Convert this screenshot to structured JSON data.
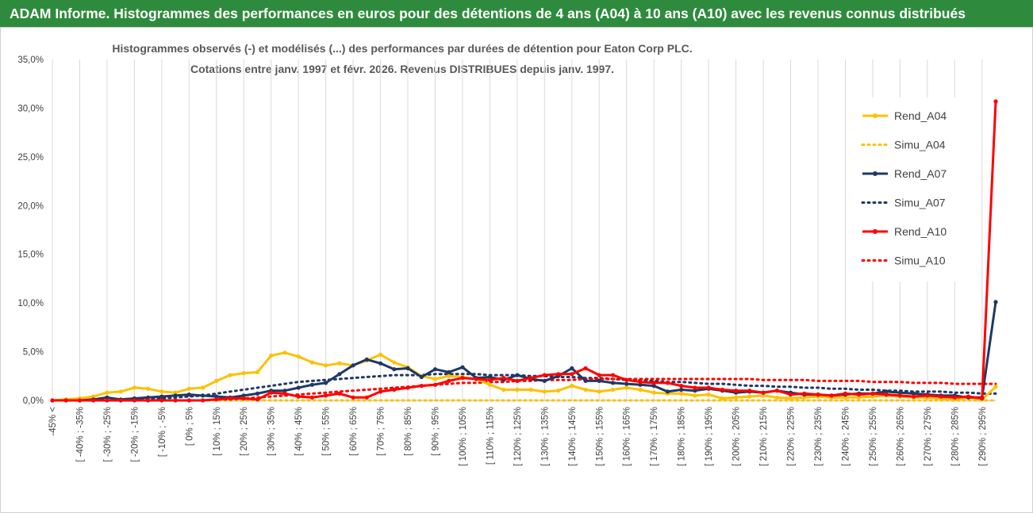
{
  "header": {
    "title": "ADAM Informe. Histogrammes des performances en euros pour des détentions de 4 ans (A04) à 10 ans (A10) avec les revenus connus distribués"
  },
  "chart_data": {
    "type": "line",
    "title_line1": "Histogrammes observés (-) et modélisés (...) des performances par durées de détention pour Eaton Corp PLC.",
    "title_line2": "Cotations entre janv. 1997 et févr. 2026. Revenus DISTRIBUES depuis janv. 1997.",
    "y_ticks": [
      "0,0%",
      "5,0%",
      "10,0%",
      "15,0%",
      "20,0%",
      "25,0%",
      "30,0%",
      "35,0%"
    ],
    "ylim": [
      0,
      35
    ],
    "x_ticks": [
      "-45% <",
      "[ -40% ; -35%",
      "[ -30% ; -25%",
      "[ -20% ; -15%",
      "[ -10% ; -5%",
      "[ 0% ; 5%",
      "[ 10% ; 15%",
      "[ 20% ; 25%",
      "[ 30% ; 35%",
      "[ 40% ; 45%",
      "[ 50% ; 55%",
      "[ 60% ; 65%",
      "[ 70% ; 75%",
      "[ 80% ; 85%",
      "[ 90% ; 95%",
      "[ 100% ; 105%",
      "[ 110% ; 115%",
      "[ 120% ; 125%",
      "[ 130% ; 135%",
      "[ 140% ; 145%",
      "[ 150% ; 155%",
      "[ 160% ; 165%",
      "[ 170% ; 175%",
      "[ 180% ; 185%",
      "[ 190% ; 195%",
      "[ 200% ; 205%",
      "[ 210% ; 215%",
      "[ 220% ; 225%",
      "[ 230% ; 235%",
      "[ 240% ; 245%",
      "[ 250% ; 255%",
      "[ 260% ; 265%",
      "[ 270% ; 275%",
      "[ 280% ; 285%",
      "[ 290% ; 295%"
    ],
    "n_points": 70,
    "series": [
      {
        "name": "Rend_A04",
        "color": "#ffc000",
        "dashed": false,
        "values": [
          0,
          0.1,
          0.2,
          0.4,
          0.8,
          0.9,
          1.3,
          1.2,
          0.9,
          0.8,
          1.2,
          1.3,
          2.0,
          2.6,
          2.8,
          2.9,
          4.6,
          4.9,
          4.5,
          3.9,
          3.6,
          3.8,
          3.6,
          4.1,
          4.7,
          3.9,
          3.4,
          2.5,
          2.2,
          2.5,
          2.4,
          2.2,
          1.6,
          1.1,
          1.1,
          1.1,
          0.9,
          1.0,
          1.5,
          1.1,
          0.9,
          1.1,
          1.3,
          1.1,
          0.8,
          0.7,
          0.7,
          0.5,
          0.6,
          0.2,
          0.3,
          0.4,
          0.5,
          0.3,
          0.2,
          0.3,
          0.4,
          0.3,
          0.3,
          0.3,
          0.4,
          0.5,
          0.4,
          0.3,
          0.3,
          0.2,
          0.1,
          0.3,
          0.1,
          1.4
        ]
      },
      {
        "name": "Simu_A04",
        "color": "#ffc000",
        "dashed": true,
        "values": [
          0,
          0,
          0,
          0,
          0,
          0,
          0,
          0,
          0,
          0,
          0,
          0,
          0,
          0,
          0,
          0,
          0,
          0,
          0,
          0,
          0,
          0,
          0,
          0,
          0,
          0,
          0,
          0,
          0,
          0,
          0,
          0,
          0,
          0,
          0,
          0,
          0,
          0,
          0,
          0,
          0,
          0,
          0,
          0,
          0,
          0,
          0,
          0,
          0,
          0,
          0,
          0,
          0,
          0,
          0,
          0,
          0,
          0,
          0,
          0,
          0,
          0,
          0,
          0,
          0,
          0,
          0,
          0,
          0,
          0
        ]
      },
      {
        "name": "Rend_A07",
        "color": "#1f3864",
        "dashed": false,
        "values": [
          0,
          0,
          0,
          0.1,
          0.3,
          0.1,
          0.2,
          0.3,
          0.4,
          0.5,
          0.6,
          0.5,
          0.4,
          0.3,
          0.5,
          0.7,
          1.0,
          1.0,
          1.3,
          1.6,
          1.8,
          2.7,
          3.6,
          4.2,
          3.8,
          3.2,
          3.3,
          2.4,
          3.2,
          2.9,
          3.4,
          2.3,
          2.4,
          2.1,
          2.6,
          2.2,
          2.0,
          2.5,
          3.3,
          2.0,
          2.0,
          1.8,
          1.7,
          1.6,
          1.5,
          0.9,
          1.1,
          1.0,
          1.2,
          1.0,
          0.8,
          0.9,
          0.8,
          1.0,
          0.8,
          0.6,
          0.6,
          0.5,
          0.6,
          0.7,
          0.7,
          0.9,
          0.8,
          0.7,
          0.6,
          0.5,
          0.5,
          0.3,
          0.3,
          10.1
        ]
      },
      {
        "name": "Simu_A07",
        "color": "#1f3864",
        "dashed": true,
        "values": [
          0,
          0,
          0,
          0,
          0,
          0,
          0.1,
          0.1,
          0.2,
          0.3,
          0.4,
          0.5,
          0.7,
          0.9,
          1.1,
          1.3,
          1.5,
          1.7,
          1.9,
          2.0,
          2.1,
          2.2,
          2.3,
          2.4,
          2.5,
          2.6,
          2.6,
          2.6,
          2.7,
          2.7,
          2.7,
          2.7,
          2.6,
          2.6,
          2.6,
          2.5,
          2.5,
          2.4,
          2.4,
          2.3,
          2.3,
          2.2,
          2.1,
          2.1,
          2.0,
          1.9,
          1.9,
          1.8,
          1.7,
          1.7,
          1.6,
          1.5,
          1.5,
          1.4,
          1.4,
          1.3,
          1.3,
          1.2,
          1.2,
          1.1,
          1.1,
          1.0,
          1.0,
          0.9,
          0.9,
          0.9,
          0.8,
          0.8,
          0.7,
          0.7
        ]
      },
      {
        "name": "Rend_A10",
        "color": "#ff0000",
        "dashed": false,
        "values": [
          0,
          0,
          0,
          0,
          0,
          0,
          0,
          0,
          0,
          0,
          0,
          0,
          0.1,
          0.2,
          0.2,
          0.1,
          0.8,
          0.7,
          0.4,
          0.3,
          0.5,
          0.7,
          0.3,
          0.3,
          0.9,
          1.1,
          1.3,
          1.5,
          1.6,
          2.0,
          2.3,
          2.2,
          2.1,
          2.3,
          2.0,
          2.3,
          2.6,
          2.7,
          2.7,
          3.3,
          2.6,
          2.6,
          2.1,
          1.9,
          1.8,
          1.8,
          1.5,
          1.3,
          1.3,
          1.1,
          1.0,
          1.0,
          0.8,
          1.0,
          0.6,
          0.7,
          0.6,
          0.5,
          0.7,
          0.6,
          0.7,
          0.6,
          0.5,
          0.4,
          0.5,
          0.4,
          0.3,
          0.4,
          0.2,
          30.7
        ]
      },
      {
        "name": "Simu_A10",
        "color": "#ff0000",
        "dashed": true,
        "values": [
          0,
          0,
          0,
          0,
          0,
          0,
          0,
          0,
          0,
          0,
          0,
          0,
          0.1,
          0.1,
          0.2,
          0.3,
          0.4,
          0.5,
          0.6,
          0.7,
          0.8,
          0.9,
          1.0,
          1.1,
          1.2,
          1.3,
          1.4,
          1.5,
          1.6,
          1.7,
          1.8,
          1.8,
          1.9,
          1.9,
          2.0,
          2.0,
          2.1,
          2.1,
          2.1,
          2.2,
          2.2,
          2.2,
          2.2,
          2.2,
          2.2,
          2.2,
          2.2,
          2.2,
          2.2,
          2.2,
          2.2,
          2.2,
          2.1,
          2.1,
          2.1,
          2.1,
          2.0,
          2.0,
          2.0,
          2.0,
          1.9,
          1.9,
          1.9,
          1.8,
          1.8,
          1.8,
          1.7,
          1.7,
          1.7,
          1.7
        ]
      }
    ]
  }
}
